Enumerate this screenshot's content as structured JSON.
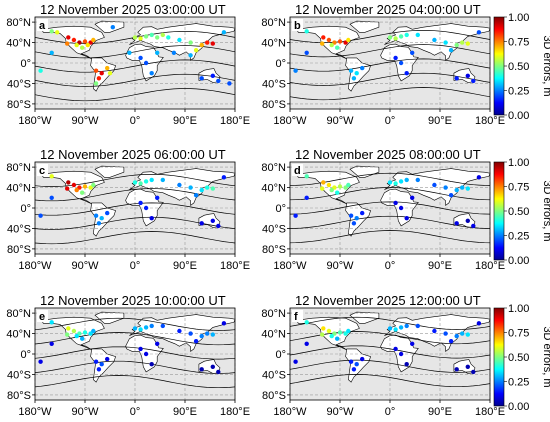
{
  "chart_data": {
    "type": "scatter",
    "panels": [
      {
        "letter": "a",
        "title": "12 November 2025 03:00:00 UT",
        "points": [
          [
            -120,
            50,
            0.9
          ],
          [
            -110,
            45,
            0.85
          ],
          [
            -100,
            40,
            0.95
          ],
          [
            -90,
            42,
            0.8
          ],
          [
            -80,
            40,
            0.9
          ],
          [
            -75,
            45,
            0.7
          ],
          [
            -122,
            38,
            0.75
          ],
          [
            -105,
            35,
            0.6
          ],
          [
            -95,
            30,
            0.55
          ],
          [
            -85,
            35,
            0.65
          ],
          [
            -150,
            62,
            0.5
          ],
          [
            -140,
            60,
            0.6
          ],
          [
            -70,
            -15,
            0.8
          ],
          [
            -60,
            -20,
            0.9
          ],
          [
            -50,
            -10,
            0.7
          ],
          [
            -65,
            -30,
            0.85
          ],
          [
            -45,
            -20,
            0.6
          ],
          [
            -70,
            -40,
            0.5
          ],
          [
            0,
            50,
            0.55
          ],
          [
            10,
            48,
            0.6
          ],
          [
            20,
            52,
            0.5
          ],
          [
            30,
            55,
            0.45
          ],
          [
            40,
            50,
            0.5
          ],
          [
            50,
            55,
            0.55
          ],
          [
            60,
            50,
            0.4
          ],
          [
            80,
            45,
            0.35
          ],
          [
            100,
            40,
            0.5
          ],
          [
            120,
            35,
            0.7
          ],
          [
            130,
            40,
            0.85
          ],
          [
            140,
            38,
            0.9
          ],
          [
            110,
            25,
            0.6
          ],
          [
            100,
            15,
            0.3
          ],
          [
            20,
            0,
            0.2
          ],
          [
            30,
            -20,
            0.25
          ],
          [
            10,
            10,
            0.2
          ],
          [
            -10,
            20,
            0.3
          ],
          [
            40,
            20,
            0.3
          ],
          [
            70,
            20,
            0.25
          ],
          [
            120,
            -30,
            0.2
          ],
          [
            140,
            -25,
            0.15
          ],
          [
            150,
            -35,
            0.2
          ],
          [
            170,
            -40,
            0.2
          ],
          [
            -150,
            20,
            0.3
          ],
          [
            -170,
            -15,
            0.4
          ],
          [
            160,
            60,
            0.3
          ],
          [
            -40,
            70,
            0.25
          ]
        ]
      },
      {
        "letter": "b",
        "title": "12 November 2025 04:00:00 UT",
        "points": [
          [
            -120,
            50,
            0.85
          ],
          [
            -110,
            45,
            0.8
          ],
          [
            -100,
            40,
            0.75
          ],
          [
            -90,
            42,
            0.8
          ],
          [
            -80,
            40,
            0.9
          ],
          [
            -75,
            45,
            0.65
          ],
          [
            -122,
            38,
            0.7
          ],
          [
            -105,
            35,
            0.55
          ],
          [
            -95,
            30,
            0.45
          ],
          [
            -150,
            62,
            0.4
          ],
          [
            -70,
            -15,
            0.3
          ],
          [
            -60,
            -20,
            0.35
          ],
          [
            -50,
            -10,
            0.25
          ],
          [
            -65,
            -30,
            0.3
          ],
          [
            0,
            50,
            0.5
          ],
          [
            10,
            48,
            0.55
          ],
          [
            20,
            52,
            0.45
          ],
          [
            30,
            55,
            0.4
          ],
          [
            50,
            55,
            0.35
          ],
          [
            80,
            45,
            0.3
          ],
          [
            100,
            40,
            0.35
          ],
          [
            120,
            35,
            0.5
          ],
          [
            130,
            40,
            0.55
          ],
          [
            140,
            38,
            0.6
          ],
          [
            110,
            25,
            0.3
          ],
          [
            20,
            0,
            0.2
          ],
          [
            30,
            -20,
            0.15
          ],
          [
            10,
            10,
            0.15
          ],
          [
            40,
            20,
            0.2
          ],
          [
            120,
            -30,
            0.15
          ],
          [
            140,
            -25,
            0.1
          ],
          [
            150,
            -35,
            0.15
          ],
          [
            -150,
            20,
            0.2
          ],
          [
            -170,
            -15,
            0.25
          ],
          [
            160,
            60,
            0.2
          ]
        ]
      },
      {
        "letter": "c",
        "title": "12 November 2025 06:00:00 UT",
        "points": [
          [
            -120,
            50,
            0.95
          ],
          [
            -110,
            45,
            0.9
          ],
          [
            -100,
            40,
            0.85
          ],
          [
            -90,
            42,
            0.7
          ],
          [
            -80,
            40,
            0.6
          ],
          [
            -75,
            45,
            0.5
          ],
          [
            -122,
            38,
            0.9
          ],
          [
            -105,
            35,
            0.75
          ],
          [
            -95,
            30,
            0.5
          ],
          [
            -150,
            62,
            0.6
          ],
          [
            -70,
            -15,
            0.25
          ],
          [
            -60,
            -20,
            0.3
          ],
          [
            -50,
            -10,
            0.2
          ],
          [
            -65,
            -30,
            0.25
          ],
          [
            0,
            50,
            0.4
          ],
          [
            10,
            48,
            0.45
          ],
          [
            20,
            52,
            0.4
          ],
          [
            30,
            55,
            0.35
          ],
          [
            50,
            55,
            0.3
          ],
          [
            80,
            45,
            0.25
          ],
          [
            100,
            40,
            0.3
          ],
          [
            120,
            35,
            0.35
          ],
          [
            130,
            40,
            0.4
          ],
          [
            140,
            38,
            0.45
          ],
          [
            110,
            25,
            0.25
          ],
          [
            20,
            0,
            0.15
          ],
          [
            30,
            -20,
            0.1
          ],
          [
            10,
            10,
            0.15
          ],
          [
            40,
            20,
            0.15
          ],
          [
            120,
            -30,
            0.1
          ],
          [
            140,
            -25,
            0.1
          ],
          [
            150,
            -35,
            0.1
          ],
          [
            -150,
            20,
            0.2
          ],
          [
            -170,
            -15,
            0.2
          ],
          [
            160,
            60,
            0.15
          ]
        ]
      },
      {
        "letter": "d",
        "title": "12 November 2025 08:00:00 UT",
        "points": [
          [
            -120,
            50,
            0.7
          ],
          [
            -110,
            45,
            0.65
          ],
          [
            -100,
            40,
            0.6
          ],
          [
            -90,
            42,
            0.55
          ],
          [
            -80,
            40,
            0.5
          ],
          [
            -75,
            45,
            0.45
          ],
          [
            -122,
            38,
            0.6
          ],
          [
            -105,
            35,
            0.5
          ],
          [
            -95,
            30,
            0.4
          ],
          [
            -150,
            62,
            0.45
          ],
          [
            -70,
            -15,
            0.2
          ],
          [
            -60,
            -20,
            0.25
          ],
          [
            -50,
            -10,
            0.15
          ],
          [
            -65,
            -30,
            0.2
          ],
          [
            0,
            50,
            0.35
          ],
          [
            10,
            48,
            0.4
          ],
          [
            20,
            52,
            0.35
          ],
          [
            30,
            55,
            0.3
          ],
          [
            50,
            55,
            0.25
          ],
          [
            80,
            45,
            0.2
          ],
          [
            100,
            40,
            0.25
          ],
          [
            120,
            35,
            0.3
          ],
          [
            130,
            40,
            0.3
          ],
          [
            140,
            38,
            0.35
          ],
          [
            110,
            25,
            0.2
          ],
          [
            20,
            0,
            0.1
          ],
          [
            30,
            -20,
            0.1
          ],
          [
            10,
            10,
            0.1
          ],
          [
            40,
            20,
            0.1
          ],
          [
            120,
            -30,
            0.1
          ],
          [
            140,
            -25,
            0.05
          ],
          [
            150,
            -35,
            0.1
          ],
          [
            -150,
            20,
            0.15
          ],
          [
            -170,
            -15,
            0.15
          ],
          [
            160,
            60,
            0.1
          ]
        ]
      },
      {
        "letter": "e",
        "title": "12 November 2025 10:00:00 UT",
        "points": [
          [
            -120,
            50,
            0.6
          ],
          [
            -110,
            45,
            0.55
          ],
          [
            -100,
            40,
            0.45
          ],
          [
            -90,
            42,
            0.4
          ],
          [
            -80,
            40,
            0.35
          ],
          [
            -75,
            45,
            0.3
          ],
          [
            -122,
            38,
            0.5
          ],
          [
            -105,
            35,
            0.35
          ],
          [
            -95,
            30,
            0.3
          ],
          [
            -150,
            62,
            0.35
          ],
          [
            -70,
            -15,
            0.15
          ],
          [
            -60,
            -20,
            0.2
          ],
          [
            -50,
            -10,
            0.1
          ],
          [
            -65,
            -30,
            0.15
          ],
          [
            0,
            50,
            0.3
          ],
          [
            10,
            48,
            0.35
          ],
          [
            20,
            52,
            0.3
          ],
          [
            30,
            55,
            0.25
          ],
          [
            50,
            55,
            0.2
          ],
          [
            80,
            45,
            0.15
          ],
          [
            100,
            40,
            0.2
          ],
          [
            120,
            35,
            0.25
          ],
          [
            130,
            40,
            0.25
          ],
          [
            140,
            38,
            0.3
          ],
          [
            110,
            25,
            0.15
          ],
          [
            20,
            0,
            0.1
          ],
          [
            30,
            -20,
            0.05
          ],
          [
            10,
            10,
            0.1
          ],
          [
            40,
            20,
            0.1
          ],
          [
            120,
            -30,
            0.05
          ],
          [
            140,
            -25,
            0.05
          ],
          [
            150,
            -35,
            0.05
          ],
          [
            -150,
            20,
            0.1
          ],
          [
            -170,
            -15,
            0.1
          ],
          [
            160,
            60,
            0.1
          ]
        ]
      },
      {
        "letter": "f",
        "title": "12 November 2025 12:00:00 UT",
        "points": [
          [
            -120,
            50,
            0.65
          ],
          [
            -110,
            45,
            0.6
          ],
          [
            -100,
            40,
            0.5
          ],
          [
            -90,
            42,
            0.45
          ],
          [
            -80,
            40,
            0.4
          ],
          [
            -75,
            45,
            0.35
          ],
          [
            -122,
            38,
            0.55
          ],
          [
            -105,
            35,
            0.4
          ],
          [
            -95,
            30,
            0.3
          ],
          [
            -150,
            62,
            0.4
          ],
          [
            -70,
            -15,
            0.15
          ],
          [
            -60,
            -20,
            0.2
          ],
          [
            -50,
            -10,
            0.1
          ],
          [
            -65,
            -30,
            0.15
          ],
          [
            0,
            50,
            0.3
          ],
          [
            10,
            48,
            0.35
          ],
          [
            20,
            52,
            0.3
          ],
          [
            30,
            55,
            0.25
          ],
          [
            50,
            55,
            0.2
          ],
          [
            80,
            45,
            0.15
          ],
          [
            100,
            40,
            0.2
          ],
          [
            120,
            35,
            0.25
          ],
          [
            130,
            40,
            0.3
          ],
          [
            140,
            38,
            0.35
          ],
          [
            110,
            25,
            0.15
          ],
          [
            20,
            0,
            0.1
          ],
          [
            30,
            -20,
            0.05
          ],
          [
            10,
            10,
            0.1
          ],
          [
            40,
            20,
            0.1
          ],
          [
            120,
            -30,
            0.05
          ],
          [
            140,
            -25,
            0.05
          ],
          [
            150,
            -35,
            0.05
          ],
          [
            -150,
            20,
            0.1
          ],
          [
            -170,
            -15,
            0.1
          ],
          [
            160,
            60,
            0.1
          ]
        ]
      }
    ],
    "xticks": [
      "180°W",
      "90°W",
      "0°",
      "90°E",
      "180°E"
    ],
    "xtick_values": [
      -180,
      -90,
      0,
      90,
      180
    ],
    "yticks": [
      "80°N",
      "40°N",
      "0°",
      "40°S",
      "80°S"
    ],
    "ytick_values": [
      80,
      40,
      0,
      -40,
      -80
    ],
    "xlim": [
      -180,
      180
    ],
    "ylim": [
      -90,
      90
    ],
    "colorbar": {
      "label": "3D errors, m",
      "ticks": [
        "1.00",
        "0.75",
        "0.50",
        "0.25",
        "0.00"
      ],
      "tick_values": [
        1.0,
        0.75,
        0.5,
        0.25,
        0.0
      ],
      "range": [
        0,
        1
      ],
      "colormap": "jet"
    },
    "colors": {
      "land_fill": "#ffffff",
      "ocean_fill": "#e6e6e6",
      "grid": "#999999",
      "terminator": "#000000"
    }
  }
}
